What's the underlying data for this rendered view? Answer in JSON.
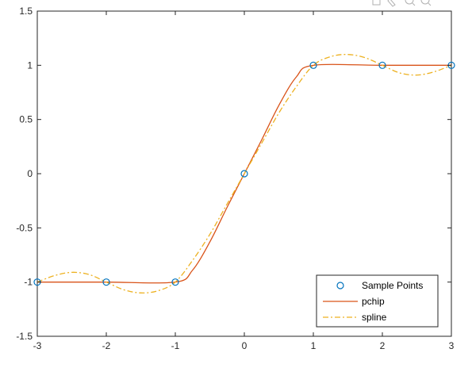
{
  "axes_toolbar": {
    "icons": [
      "export-icon",
      "brush-icon",
      "zoom-in-icon",
      "zoom-out-icon"
    ]
  },
  "chart_data": {
    "type": "line",
    "title": "",
    "xlabel": "",
    "ylabel": "",
    "xlim": [
      -3,
      3
    ],
    "ylim": [
      -1.5,
      1.5
    ],
    "x_ticks": [
      "-3",
      "-2",
      "-1",
      "0",
      "1",
      "2",
      "3"
    ],
    "y_ticks": [
      "1.5",
      "1",
      "0.5",
      "0",
      "-0.5",
      "-1",
      "-1.5"
    ],
    "grid": false,
    "legend_position": "bottom-right",
    "series": [
      {
        "name": "Sample Points",
        "style": "markers",
        "marker": "circle",
        "color": "#0072bd",
        "x": [
          -3,
          -2,
          -1,
          0,
          1,
          2,
          3
        ],
        "y": [
          -1,
          -1,
          -1,
          0,
          1,
          1,
          1
        ]
      },
      {
        "name": "pchip",
        "style": "solid",
        "color": "#d95319",
        "x": [
          -3,
          -2,
          -1,
          -0.75,
          -0.5,
          -0.25,
          0,
          0.25,
          0.5,
          0.75,
          1,
          2,
          3
        ],
        "y": [
          -1,
          -1,
          -1,
          -0.89,
          -0.63,
          -0.31,
          0,
          0.31,
          0.63,
          0.89,
          1,
          1,
          1
        ]
      },
      {
        "name": "spline",
        "style": "dashdot",
        "color": "#edb120",
        "x": [
          -3,
          -2.75,
          -2.5,
          -2.25,
          -2,
          -1.75,
          -1.5,
          -1.25,
          -1,
          -0.75,
          -0.5,
          -0.25,
          0,
          0.25,
          0.5,
          0.75,
          1,
          1.25,
          1.5,
          1.75,
          2,
          2.25,
          2.5,
          2.75,
          3
        ],
        "y": [
          -1,
          -0.94,
          -0.91,
          -0.93,
          -1,
          -1.07,
          -1.1,
          -1.08,
          -1,
          -0.8,
          -0.56,
          -0.28,
          0,
          0.28,
          0.56,
          0.8,
          1,
          1.08,
          1.1,
          1.07,
          1,
          0.93,
          0.91,
          0.94,
          1
        ]
      }
    ]
  }
}
